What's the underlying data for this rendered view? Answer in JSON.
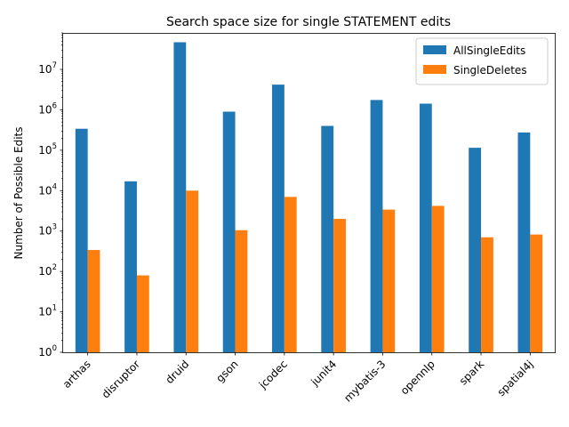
{
  "chart_data": {
    "type": "bar",
    "title": "Search space size for single STATEMENT edits",
    "xlabel": "",
    "ylabel": "Number of Possible Edits",
    "yscale": "log",
    "ylim": [
      1,
      80000000
    ],
    "y_ticks": [
      {
        "value": 1,
        "base": "10",
        "exp": "0"
      },
      {
        "value": 10,
        "base": "10",
        "exp": "1"
      },
      {
        "value": 100,
        "base": "10",
        "exp": "2"
      },
      {
        "value": 1000,
        "base": "10",
        "exp": "3"
      },
      {
        "value": 10000,
        "base": "10",
        "exp": "4"
      },
      {
        "value": 100000,
        "base": "10",
        "exp": "5"
      },
      {
        "value": 1000000,
        "base": "10",
        "exp": "6"
      },
      {
        "value": 10000000,
        "base": "10",
        "exp": "7"
      }
    ],
    "categories": [
      "arthas",
      "disruptor",
      "druid",
      "gson",
      "jcodec",
      "junit4",
      "mybatis-3",
      "opennlp",
      "spark",
      "spatial4j"
    ],
    "series": [
      {
        "name": "AllSingleEdits",
        "color": "#1f77b4",
        "values": [
          340000,
          17000,
          47000000,
          900000,
          4200000,
          400000,
          1750000,
          1420000,
          115000,
          275000
        ]
      },
      {
        "name": "SingleDeletes",
        "color": "#ff7f0e",
        "values": [
          340,
          80,
          10000,
          1050,
          7000,
          2000,
          3400,
          4200,
          700,
          820
        ]
      }
    ],
    "legend_position": "top-right",
    "grid": false
  }
}
